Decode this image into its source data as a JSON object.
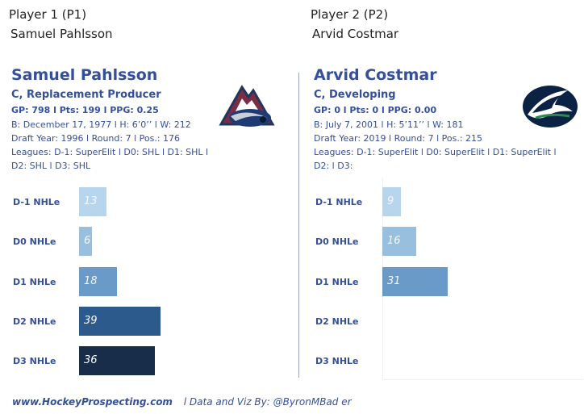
{
  "header": {
    "p1_title": "Player 1 (P1)",
    "p1_name": "Samuel Pahlsson",
    "p2_title": "Player 2 (P2)",
    "p2_name": "Arvid Costmar"
  },
  "players": [
    {
      "name": "Samuel Pahlsson",
      "role": "C, Replacement Producer",
      "stats": "GP: 798 l Pts: 199 l PPG: 0.25",
      "bio": "B: December 17, 1977 l H: 6’0’’ l W: 212",
      "draft": "Draft Year: 1996 l Round: 7 l Pos.: 176",
      "leagues1": "Leagues: D-1: SuperElit l D0: SHL l D1: SHL l",
      "leagues2": "D2: SHL l D3: SHL",
      "logo": "colorado-avalanche-logo"
    },
    {
      "name": "Arvid Costmar",
      "role": "C, Developing",
      "stats": "GP: 0 l Pts: 0 l PPG: 0.00",
      "bio": "B: July 7, 2001 l H: 5’11’’ l W: 181",
      "draft": "Draft Year: 2019 l Round: 7 l Pos.: 215",
      "leagues1": "Leagues: D-1: SuperElit l D0: SuperElit l D1: SuperElit l",
      "leagues2": "D2:  l D3:",
      "logo": "vancouver-canucks-logo"
    }
  ],
  "chart_data": [
    {
      "type": "bar",
      "orientation": "horizontal",
      "categories": [
        "D-1 NHLe",
        "D0 NHLe",
        "D1 NHLe",
        "D2 NHLe",
        "D3 NHLe"
      ],
      "values": [
        13,
        6,
        18,
        39,
        36
      ],
      "value_labels": [
        "13",
        "6",
        "18",
        "39",
        "36"
      ],
      "colors": [
        "#b7d5ec",
        "#98bfde",
        "#6a9ac7",
        "#2c5a8c",
        "#182d4a"
      ]
    },
    {
      "type": "bar",
      "orientation": "horizontal",
      "categories": [
        "D-1 NHLe",
        "D0 NHLe",
        "D1 NHLe",
        "D2 NHLe",
        "D3 NHLe"
      ],
      "values": [
        9,
        16,
        31,
        null,
        null
      ],
      "value_labels": [
        "9",
        "16",
        "31",
        "",
        ""
      ],
      "colors": [
        "#b7d5ec",
        "#98bfde",
        "#6a9ac7",
        "#2c5a8c",
        "#182d4a"
      ]
    }
  ],
  "footer": {
    "site": "www.HockeyProspecting.com",
    "credit": "l  Data and Viz By: @ByronMBad er"
  }
}
